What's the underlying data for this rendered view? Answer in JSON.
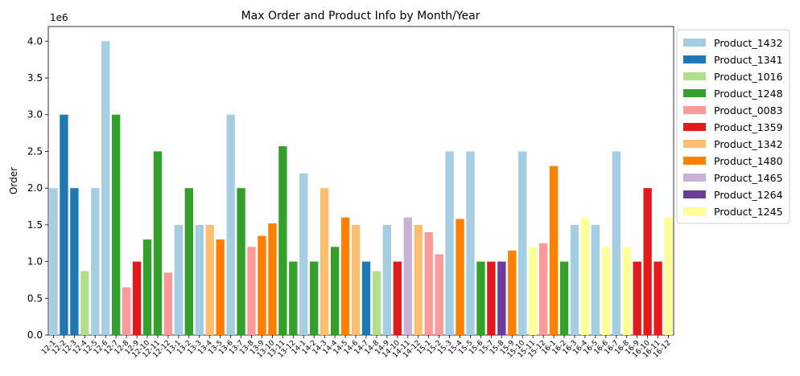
{
  "chart_data": {
    "type": "bar",
    "title": "Max Order and Product Info by Month/Year",
    "xlabel": "",
    "ylabel": "Order",
    "y_scale_note": "1e6",
    "ylim": [
      0,
      4.2
    ],
    "yticks": [
      "0.0",
      "0.5",
      "1.0",
      "1.5",
      "2.0",
      "2.5",
      "3.0",
      "3.5",
      "4.0"
    ],
    "legend_position": "outside-right-top",
    "products": {
      "Product_1432": "#a6cee3",
      "Product_1341": "#1f78b4",
      "Product_1016": "#b2df8a",
      "Product_1248": "#33a02c",
      "Product_0083": "#fb9a99",
      "Product_1359": "#e31a1c",
      "Product_1342": "#fdbf6f",
      "Product_1480": "#ff7f00",
      "Product_1465": "#cab2d6",
      "Product_1264": "#6a3d9a",
      "Product_1245": "#ffff99"
    },
    "legend_order": [
      "Product_1432",
      "Product_1341",
      "Product_1016",
      "Product_1248",
      "Product_0083",
      "Product_1359",
      "Product_1342",
      "Product_1480",
      "Product_1465",
      "Product_1264",
      "Product_1245"
    ],
    "categories": [
      "12-1",
      "12-2",
      "12-3",
      "12-4",
      "12-5",
      "12-6",
      "12-7",
      "12-8",
      "12-9",
      "12-10",
      "12-11",
      "12-12",
      "13-1",
      "13-2",
      "13-3",
      "13-4",
      "13-5",
      "13-6",
      "13-7",
      "13-8",
      "13-9",
      "13-10",
      "13-11",
      "13-12",
      "14-1",
      "14-2",
      "14-3",
      "14-4",
      "14-5",
      "14-6",
      "14-7",
      "14-8",
      "14-9",
      "14-10",
      "14-11",
      "14-12",
      "15-1",
      "15-2",
      "15-3",
      "15-4",
      "15-5",
      "15-6",
      "15-7",
      "15-8",
      "15-9",
      "15-10",
      "15-11",
      "15-12",
      "16-1",
      "16-2",
      "16-3",
      "16-4",
      "16-5",
      "16-6",
      "16-7",
      "16-8",
      "16-9",
      "16-10",
      "16-11",
      "16-12"
    ],
    "values": [
      2.0,
      3.0,
      2.0,
      0.87,
      2.0,
      4.0,
      3.0,
      0.65,
      1.0,
      1.3,
      2.5,
      0.85,
      1.5,
      2.0,
      1.5,
      1.5,
      1.3,
      3.0,
      2.0,
      1.2,
      1.35,
      1.52,
      2.57,
      1.0,
      2.2,
      1.0,
      2.0,
      1.2,
      1.6,
      1.5,
      1.0,
      0.87,
      1.5,
      1.0,
      1.6,
      1.5,
      1.4,
      1.1,
      2.5,
      1.58,
      2.5,
      1.0,
      1.0,
      1.0,
      1.15,
      2.5,
      1.2,
      1.25,
      2.3,
      1.0,
      1.5,
      1.6,
      1.5,
      1.2,
      2.5,
      1.2,
      1.0,
      2.0,
      1.0,
      1.6
    ],
    "bar_products": [
      "Product_1432",
      "Product_1341",
      "Product_1341",
      "Product_1016",
      "Product_1432",
      "Product_1432",
      "Product_1248",
      "Product_0083",
      "Product_1359",
      "Product_1248",
      "Product_1248",
      "Product_0083",
      "Product_1432",
      "Product_1248",
      "Product_1432",
      "Product_1342",
      "Product_1480",
      "Product_1432",
      "Product_1248",
      "Product_0083",
      "Product_1480",
      "Product_1480",
      "Product_1248",
      "Product_1248",
      "Product_1432",
      "Product_1248",
      "Product_1342",
      "Product_1248",
      "Product_1480",
      "Product_1342",
      "Product_1341",
      "Product_1016",
      "Product_1432",
      "Product_1359",
      "Product_1465",
      "Product_1342",
      "Product_0083",
      "Product_0083",
      "Product_1432",
      "Product_1480",
      "Product_1432",
      "Product_1248",
      "Product_1359",
      "Product_1264",
      "Product_1480",
      "Product_1432",
      "Product_1245",
      "Product_0083",
      "Product_1480",
      "Product_1248",
      "Product_1432",
      "Product_1245",
      "Product_1432",
      "Product_1245",
      "Product_1432",
      "Product_1245",
      "Product_1359",
      "Product_1359",
      "Product_1359",
      "Product_1245"
    ]
  }
}
